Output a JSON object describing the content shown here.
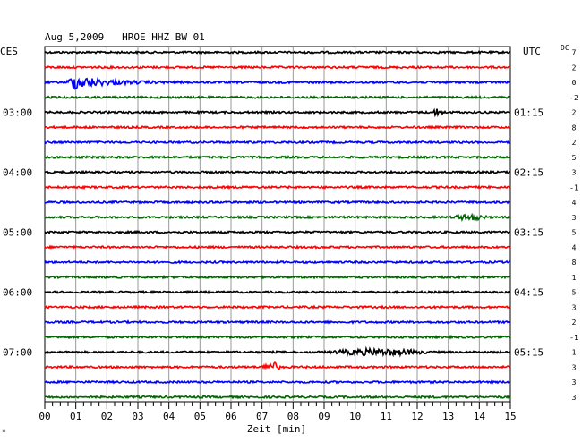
{
  "chart_data": {
    "type": "line",
    "title": "Aug 5,2009   HROE HHZ BW 01",
    "left_label": "CES",
    "right_label": "UTC",
    "dc_label": "DC",
    "xlabel": "Zeit [min]",
    "x_ticks": [
      "00",
      "01",
      "02",
      "03",
      "04",
      "05",
      "06",
      "07",
      "08",
      "09",
      "10",
      "11",
      "12",
      "13",
      "14",
      "15"
    ],
    "xlim": [
      0,
      15
    ],
    "traces_per_hour": 4,
    "left_hour_labels": [
      "03:00",
      "04:00",
      "05:00",
      "06:00",
      "07:00"
    ],
    "right_hour_labels": [
      "01:15",
      "02:15",
      "03:15",
      "04:15",
      "05:15"
    ],
    "dc_values": [
      "7",
      "2",
      "0",
      "-2",
      "2",
      "8",
      "2",
      "5",
      "3",
      "-1",
      "4",
      "3",
      "5",
      "4",
      "8",
      "1",
      "5",
      "3",
      "2",
      "-1",
      "1",
      "3",
      "3",
      "3"
    ],
    "trace_colors": [
      "#000000",
      "#ff0000",
      "#0000ff",
      "#006600"
    ],
    "events": [
      {
        "trace": 2,
        "start_min": 0.7,
        "end_min": 4.5,
        "amplitude": 9
      },
      {
        "trace": 4,
        "start_min": 12.4,
        "end_min": 12.9,
        "amplitude": 3
      },
      {
        "trace": 11,
        "start_min": 13.1,
        "end_min": 14.3,
        "amplitude": 2.5
      },
      {
        "trace": 20,
        "start_min": 9.0,
        "end_min": 12.5,
        "amplitude": 3
      },
      {
        "trace": 21,
        "start_min": 7.0,
        "end_min": 7.6,
        "amplitude": 5
      }
    ]
  },
  "corner_mark": "*"
}
